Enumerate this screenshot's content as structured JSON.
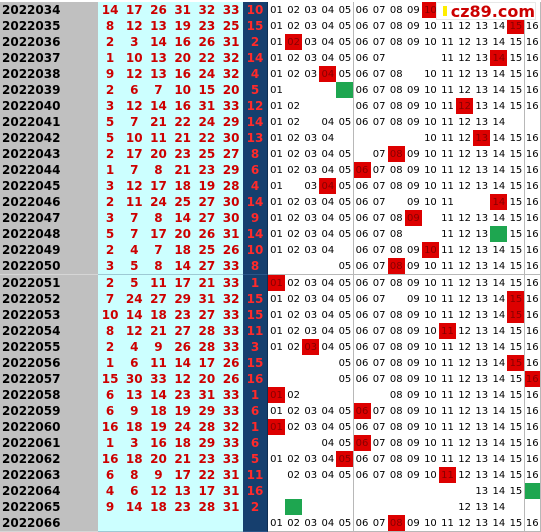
{
  "logo": {
    "text": "cz89.com",
    "square_color": "#ffee00",
    "text_color": "#cc0000"
  },
  "colors": {
    "issue_bg": "#c0c0c0",
    "red_cells_bg": "#ccffff",
    "red_text": "#cc0000",
    "blue_col_bg": "#163f6e",
    "hit": "#dd0000",
    "green": "#1ea650"
  },
  "rows": [
    {
      "issue": "2022034",
      "reds": [
        "14",
        "17",
        "26",
        "31",
        "32",
        "33"
      ],
      "blue": "10",
      "hits": [
        10
      ],
      "greens": [],
      "hidden": [
        10,
        11,
        12,
        13,
        14,
        15,
        16
      ]
    },
    {
      "issue": "2022035",
      "reds": [
        "8",
        "12",
        "13",
        "19",
        "23",
        "25"
      ],
      "blue": "15",
      "hits": [
        15
      ],
      "greens": [],
      "hidden": []
    },
    {
      "issue": "2022036",
      "reds": [
        "2",
        "3",
        "14",
        "16",
        "26",
        "31"
      ],
      "blue": "2",
      "hits": [
        2
      ],
      "greens": [],
      "hidden": []
    },
    {
      "issue": "2022037",
      "reds": [
        "1",
        "10",
        "13",
        "20",
        "22",
        "32"
      ],
      "blue": "14",
      "hits": [
        14
      ],
      "greens": [],
      "hidden": [
        8,
        9,
        10
      ]
    },
    {
      "issue": "2022038",
      "reds": [
        "9",
        "12",
        "13",
        "16",
        "24",
        "32"
      ],
      "blue": "4",
      "hits": [
        4
      ],
      "greens": [],
      "hidden": [
        9
      ]
    },
    {
      "issue": "2022039",
      "reds": [
        "2",
        "6",
        "7",
        "10",
        "15",
        "20"
      ],
      "blue": "5",
      "hits": [],
      "greens": [
        5
      ],
      "hidden": [
        2,
        3,
        4
      ]
    },
    {
      "issue": "2022040",
      "reds": [
        "3",
        "12",
        "14",
        "16",
        "31",
        "33"
      ],
      "blue": "12",
      "hits": [
        12
      ],
      "greens": [],
      "hidden": [
        3,
        4,
        5
      ]
    },
    {
      "issue": "2022041",
      "reds": [
        "5",
        "7",
        "21",
        "22",
        "24",
        "29"
      ],
      "blue": "14",
      "hits": [],
      "greens": [],
      "hidden": [
        3,
        15,
        16
      ]
    },
    {
      "issue": "2022042",
      "reds": [
        "5",
        "10",
        "11",
        "21",
        "22",
        "30"
      ],
      "blue": "13",
      "hits": [
        13
      ],
      "greens": [],
      "hidden": [
        5,
        6,
        7,
        8,
        9
      ]
    },
    {
      "issue": "2022043",
      "reds": [
        "2",
        "17",
        "20",
        "23",
        "25",
        "27"
      ],
      "blue": "8",
      "hits": [
        8
      ],
      "greens": [],
      "hidden": [
        6
      ]
    },
    {
      "issue": "2022044",
      "reds": [
        "1",
        "7",
        "8",
        "21",
        "23",
        "29"
      ],
      "blue": "6",
      "hits": [
        6
      ],
      "greens": [],
      "hidden": []
    },
    {
      "issue": "2022045",
      "reds": [
        "3",
        "12",
        "17",
        "18",
        "19",
        "28"
      ],
      "blue": "4",
      "hits": [
        4
      ],
      "greens": [],
      "hidden": [
        2
      ]
    },
    {
      "issue": "2022046",
      "reds": [
        "2",
        "11",
        "24",
        "25",
        "27",
        "30"
      ],
      "blue": "14",
      "hits": [
        14
      ],
      "greens": [],
      "hidden": [
        8,
        12,
        13
      ]
    },
    {
      "issue": "2022047",
      "reds": [
        "3",
        "7",
        "8",
        "14",
        "27",
        "30"
      ],
      "blue": "9",
      "hits": [
        9
      ],
      "greens": [],
      "hidden": [
        10
      ]
    },
    {
      "issue": "2022048",
      "reds": [
        "5",
        "7",
        "17",
        "20",
        "26",
        "31"
      ],
      "blue": "14",
      "hits": [],
      "greens": [
        14
      ],
      "hidden": [
        9,
        10
      ]
    },
    {
      "issue": "2022049",
      "reds": [
        "2",
        "4",
        "7",
        "18",
        "25",
        "26"
      ],
      "blue": "10",
      "hits": [
        10
      ],
      "greens": [],
      "hidden": [
        5
      ]
    },
    {
      "issue": "2022050",
      "reds": [
        "3",
        "5",
        "8",
        "14",
        "27",
        "33"
      ],
      "blue": "8",
      "hits": [
        8
      ],
      "greens": [],
      "hidden": [
        1,
        2,
        3,
        4
      ]
    },
    {
      "issue": "2022051",
      "reds": [
        "2",
        "5",
        "11",
        "17",
        "21",
        "33"
      ],
      "blue": "1",
      "hits": [
        1
      ],
      "greens": [],
      "hidden": []
    },
    {
      "issue": "2022052",
      "reds": [
        "7",
        "24",
        "27",
        "29",
        "31",
        "32"
      ],
      "blue": "15",
      "hits": [
        15
      ],
      "greens": [],
      "hidden": [
        8
      ]
    },
    {
      "issue": "2022053",
      "reds": [
        "10",
        "14",
        "18",
        "23",
        "27",
        "33"
      ],
      "blue": "15",
      "hits": [
        15
      ],
      "greens": [],
      "hidden": []
    },
    {
      "issue": "2022054",
      "reds": [
        "8",
        "12",
        "21",
        "27",
        "28",
        "33"
      ],
      "blue": "11",
      "hits": [
        11
      ],
      "greens": [],
      "hidden": []
    },
    {
      "issue": "2022055",
      "reds": [
        "2",
        "4",
        "9",
        "26",
        "28",
        "33"
      ],
      "blue": "3",
      "hits": [
        3
      ],
      "greens": [],
      "hidden": []
    },
    {
      "issue": "2022056",
      "reds": [
        "1",
        "6",
        "11",
        "14",
        "17",
        "26"
      ],
      "blue": "15",
      "hits": [
        15
      ],
      "greens": [],
      "hidden": [
        1,
        2,
        3,
        4
      ]
    },
    {
      "issue": "2022057",
      "reds": [
        "15",
        "30",
        "33",
        "12",
        "20",
        "26"
      ],
      "blue": "16",
      "hits": [
        16
      ],
      "greens": [],
      "hidden": [
        1,
        2,
        3,
        4
      ]
    },
    {
      "issue": "2022058",
      "reds": [
        "6",
        "13",
        "14",
        "23",
        "31",
        "33"
      ],
      "blue": "1",
      "hits": [
        1
      ],
      "greens": [],
      "hidden": [
        3,
        4,
        5,
        6,
        7
      ]
    },
    {
      "issue": "2022059",
      "reds": [
        "6",
        "9",
        "18",
        "19",
        "29",
        "33"
      ],
      "blue": "6",
      "hits": [
        6
      ],
      "greens": [],
      "hidden": []
    },
    {
      "issue": "2022060",
      "reds": [
        "16",
        "18",
        "19",
        "24",
        "28",
        "32"
      ],
      "blue": "1",
      "hits": [
        1
      ],
      "greens": [],
      "hidden": []
    },
    {
      "issue": "2022061",
      "reds": [
        "1",
        "3",
        "16",
        "18",
        "29",
        "33"
      ],
      "blue": "6",
      "hits": [
        6
      ],
      "greens": [],
      "hidden": [
        1,
        2,
        3
      ]
    },
    {
      "issue": "2022062",
      "reds": [
        "16",
        "18",
        "20",
        "21",
        "23",
        "33"
      ],
      "blue": "5",
      "hits": [
        5
      ],
      "greens": [],
      "hidden": []
    },
    {
      "issue": "2022063",
      "reds": [
        "6",
        "8",
        "9",
        "17",
        "22",
        "31"
      ],
      "blue": "11",
      "hits": [
        11
      ],
      "greens": [],
      "hidden": [
        1
      ]
    },
    {
      "issue": "2022064",
      "reds": [
        "4",
        "6",
        "12",
        "13",
        "17",
        "31"
      ],
      "blue": "16",
      "hits": [],
      "greens": [
        16
      ],
      "hidden": [
        1,
        2,
        3,
        4,
        5,
        6,
        7,
        8,
        9,
        10,
        11,
        12
      ]
    },
    {
      "issue": "2022065",
      "reds": [
        "9",
        "14",
        "18",
        "23",
        "28",
        "31"
      ],
      "blue": "2",
      "hits": [],
      "greens": [
        2
      ],
      "hidden": [
        1,
        3,
        4,
        5,
        6,
        7,
        8,
        9,
        10,
        11,
        15,
        16
      ]
    },
    {
      "issue": "2022066",
      "reds": [
        "",
        "",
        "",
        "",
        "",
        ""
      ],
      "blue": "",
      "hits": [
        8
      ],
      "greens": [],
      "hidden": []
    }
  ],
  "number_labels": [
    "01",
    "02",
    "03",
    "04",
    "05",
    "06",
    "07",
    "08",
    "09",
    "10",
    "11",
    "12",
    "13",
    "14",
    "15",
    "16"
  ]
}
